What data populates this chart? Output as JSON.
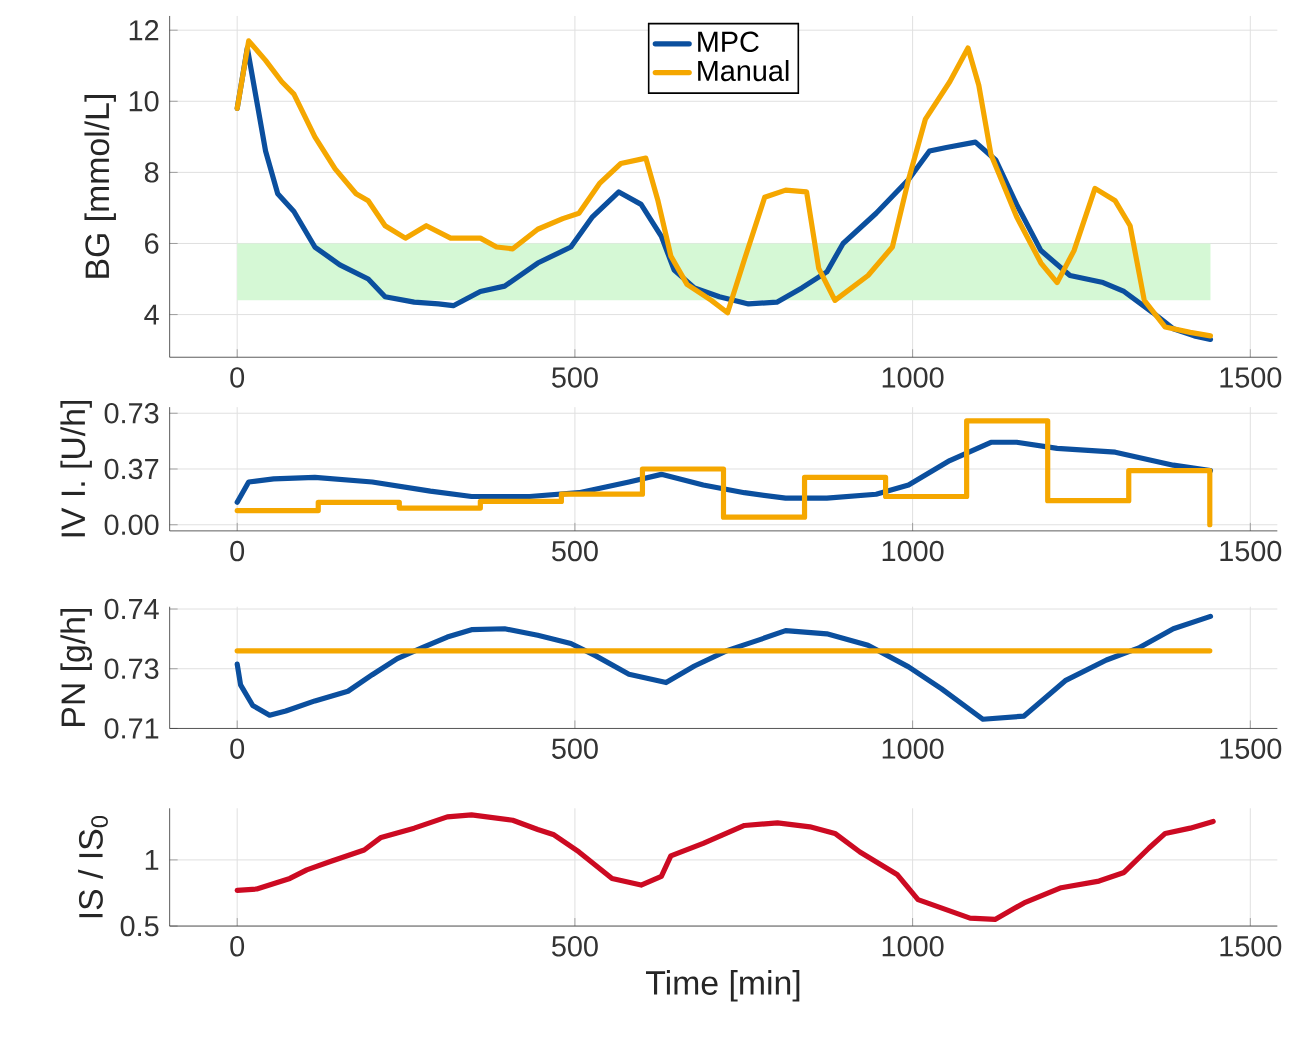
{
  "chart_data": [
    {
      "type": "line",
      "ylabel": "BG [mmol/L]",
      "xlim": [
        -100,
        1540
      ],
      "ylim": [
        2.8,
        12.4
      ],
      "xticks": [
        0,
        500,
        1000,
        1500
      ],
      "yticks": [
        4,
        6,
        8,
        10,
        12
      ],
      "grid": true,
      "legend": "top",
      "bands": [
        {
          "axis": "y",
          "from": 4.4,
          "to": 6.0,
          "color": "#d5f8d5"
        }
      ],
      "series": [
        {
          "name": "MPC",
          "color": "#0b4f9e",
          "x": [
            0,
            15,
            42,
            60,
            84,
            115,
            152,
            194,
            219,
            262,
            298,
            320,
            360,
            396,
            445,
            494,
            526,
            565,
            598,
            628,
            647,
            677,
            714,
            757,
            799,
            836,
            873,
            897,
            946,
            994,
            1025,
            1050,
            1093,
            1123,
            1154,
            1190,
            1233,
            1282,
            1313,
            1356,
            1386,
            1417,
            1441
          ],
          "values": [
            9.8,
            11.5,
            8.6,
            7.4,
            6.9,
            5.9,
            5.4,
            5.0,
            4.5,
            4.35,
            4.3,
            4.25,
            4.65,
            4.8,
            5.45,
            5.9,
            6.75,
            7.45,
            7.1,
            6.2,
            5.25,
            4.75,
            4.5,
            4.3,
            4.35,
            4.75,
            5.2,
            6.0,
            6.85,
            7.8,
            8.6,
            8.7,
            8.85,
            8.35,
            7.1,
            5.8,
            5.1,
            4.9,
            4.65,
            4.05,
            3.6,
            3.4,
            3.3
          ]
        },
        {
          "name": "Manual",
          "color": "#f5a700",
          "x": [
            0,
            17,
            42,
            66,
            84,
            115,
            145,
            176,
            194,
            219,
            249,
            280,
            316,
            360,
            384,
            408,
            445,
            482,
            506,
            537,
            568,
            605,
            623,
            642,
            666,
            702,
            726,
            751,
            781,
            812,
            843,
            861,
            885,
            934,
            970,
            994,
            1019,
            1055,
            1082,
            1098,
            1116,
            1154,
            1190,
            1214,
            1239,
            1270,
            1300,
            1322,
            1343,
            1374,
            1411,
            1441
          ],
          "values": [
            9.8,
            11.7,
            11.15,
            10.55,
            10.2,
            9.0,
            8.1,
            7.4,
            7.2,
            6.5,
            6.15,
            6.5,
            6.15,
            6.15,
            5.9,
            5.85,
            6.4,
            6.7,
            6.85,
            7.7,
            8.25,
            8.4,
            7.2,
            5.65,
            4.85,
            4.4,
            4.05,
            5.55,
            7.3,
            7.5,
            7.45,
            5.3,
            4.4,
            5.1,
            5.9,
            7.8,
            9.5,
            10.55,
            11.5,
            10.45,
            8.5,
            6.75,
            5.45,
            4.9,
            5.8,
            7.55,
            7.2,
            6.5,
            4.4,
            3.65,
            3.5,
            3.4
          ]
        }
      ]
    },
    {
      "type": "line",
      "ylabel": "IV I. [U/h]",
      "xlim": [
        -100,
        1540
      ],
      "ylim": [
        -0.04,
        0.77
      ],
      "xticks": [
        0,
        500,
        1000,
        1500
      ],
      "yticks": [
        {
          "value": 0,
          "label": "0.00"
        },
        {
          "value": 0.365,
          "label": "0.37"
        },
        {
          "value": 0.73,
          "label": "0.73"
        }
      ],
      "grid": true,
      "series": [
        {
          "color": "#0b4f9e",
          "x": [
            0,
            17,
            54,
            115,
            200,
            286,
            347,
            433,
            506,
            580,
            628,
            690,
            751,
            812,
            873,
            946,
            994,
            1055,
            1116,
            1154,
            1214,
            1300,
            1386,
            1441
          ],
          "values": [
            0.147,
            0.28,
            0.3,
            0.31,
            0.28,
            0.22,
            0.185,
            0.185,
            0.21,
            0.28,
            0.33,
            0.26,
            0.21,
            0.174,
            0.174,
            0.2,
            0.26,
            0.42,
            0.54,
            0.54,
            0.5,
            0.475,
            0.39,
            0.355
          ]
        },
        {
          "type": "step",
          "color": "#f5a700",
          "x": [
            0,
            120,
            240,
            360,
            480,
            600,
            720,
            840,
            960,
            1080,
            1200,
            1320,
            1440
          ],
          "values": [
            0.093,
            0.147,
            0.109,
            0.153,
            0.2,
            0.365,
            0.05,
            0.31,
            0.185,
            0.68,
            0.158,
            0.354,
            0
          ]
        }
      ]
    },
    {
      "type": "line",
      "ylabel": "PN [g/h]",
      "xlim": [
        -100,
        1540
      ],
      "ylim": [
        0.712,
        0.7385
      ],
      "xticks": [
        0,
        500,
        1000,
        1500
      ],
      "yticks": [
        {
          "value": 0.712,
          "label": "0.71"
        },
        {
          "value": 0.725,
          "label": "0.73"
        },
        {
          "value": 0.738,
          "label": "0.74"
        }
      ],
      "grid": true,
      "series": [
        {
          "color": "#0b4f9e",
          "x": [
            0,
            5,
            23,
            48,
            72,
            115,
            164,
            200,
            237,
            274,
            311,
            347,
            396,
            445,
            494,
            531,
            580,
            635,
            677,
            726,
            775,
            812,
            873,
            934,
            994,
            1043,
            1104,
            1165,
            1226,
            1287,
            1336,
            1386,
            1441
          ],
          "values": [
            0.726,
            0.7215,
            0.717,
            0.7149,
            0.7158,
            0.718,
            0.7201,
            0.7237,
            0.7272,
            0.7296,
            0.7319,
            0.7335,
            0.7337,
            0.7323,
            0.7305,
            0.7278,
            0.7238,
            0.722,
            0.7256,
            0.729,
            0.7314,
            0.7333,
            0.7326,
            0.7301,
            0.7254,
            0.7206,
            0.714,
            0.7147,
            0.7224,
            0.7269,
            0.7296,
            0.7337,
            0.7364
          ]
        },
        {
          "color": "#f5a700",
          "x": [
            0,
            1440
          ],
          "values": [
            0.7289,
            0.7289
          ]
        }
      ]
    },
    {
      "type": "line",
      "xlabel": "Time [min]",
      "ylabel": "IS / IS$_{0}$",
      "xlim": [
        -100,
        1540
      ],
      "ylim": [
        0.5,
        1.39
      ],
      "xticks": [
        0,
        500,
        1000,
        1500
      ],
      "yticks": [
        0.5,
        1
      ],
      "grid": true,
      "series": [
        {
          "color": "#cc0a22",
          "x": [
            0,
            29,
            78,
            103,
            139,
            188,
            213,
            262,
            311,
            347,
            408,
            445,
            469,
            506,
            555,
            598,
            628,
            642,
            690,
            751,
            800,
            848,
            885,
            922,
            977,
            1008,
            1085,
            1122,
            1165,
            1220,
            1276,
            1313,
            1350,
            1374,
            1411,
            1445
          ],
          "values": [
            0.77,
            0.78,
            0.86,
            0.925,
            0.99,
            1.075,
            1.17,
            1.24,
            1.325,
            1.34,
            1.3,
            1.23,
            1.19,
            1.06,
            0.86,
            0.81,
            0.875,
            1.03,
            1.125,
            1.26,
            1.28,
            1.25,
            1.2,
            1.06,
            0.89,
            0.7,
            0.56,
            0.55,
            0.675,
            0.79,
            0.84,
            0.905,
            1.09,
            1.2,
            1.24,
            1.29
          ]
        }
      ]
    }
  ]
}
